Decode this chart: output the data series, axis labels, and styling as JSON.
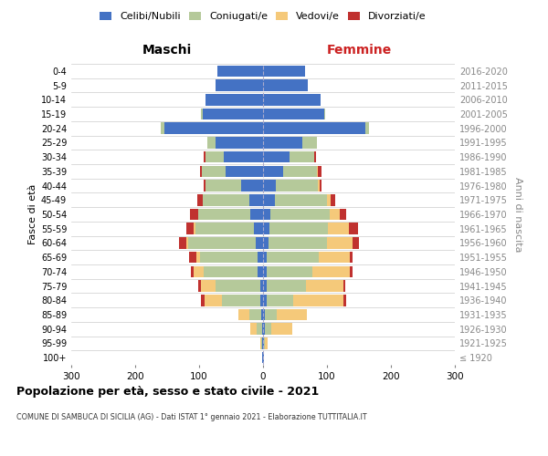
{
  "age_groups": [
    "100+",
    "95-99",
    "90-94",
    "85-89",
    "80-84",
    "75-79",
    "70-74",
    "65-69",
    "60-64",
    "55-59",
    "50-54",
    "45-49",
    "40-44",
    "35-39",
    "30-34",
    "25-29",
    "20-24",
    "15-19",
    "10-14",
    "5-9",
    "0-4"
  ],
  "birth_years": [
    "≤ 1920",
    "1921-1925",
    "1926-1930",
    "1931-1935",
    "1936-1940",
    "1941-1945",
    "1946-1950",
    "1951-1955",
    "1956-1960",
    "1961-1965",
    "1966-1970",
    "1971-1975",
    "1976-1980",
    "1981-1985",
    "1986-1990",
    "1991-1995",
    "1996-2000",
    "2001-2005",
    "2006-2010",
    "2011-2015",
    "2016-2020"
  ],
  "maschi_celibi": [
    1,
    1,
    2,
    3,
    4,
    5,
    8,
    8,
    12,
    14,
    20,
    22,
    35,
    58,
    62,
    75,
    155,
    95,
    90,
    75,
    72
  ],
  "maschi_coniugati": [
    0,
    2,
    8,
    18,
    60,
    70,
    85,
    90,
    105,
    92,
    82,
    73,
    55,
    38,
    28,
    12,
    5,
    2,
    0,
    0,
    0
  ],
  "maschi_vedovi": [
    0,
    2,
    10,
    18,
    28,
    22,
    15,
    6,
    3,
    2,
    0,
    0,
    0,
    0,
    0,
    0,
    0,
    0,
    0,
    0,
    0
  ],
  "maschi_divorziati": [
    0,
    0,
    0,
    0,
    5,
    5,
    5,
    12,
    12,
    12,
    12,
    8,
    3,
    3,
    3,
    0,
    0,
    0,
    0,
    0,
    0
  ],
  "femmine_nubili": [
    1,
    1,
    3,
    3,
    5,
    5,
    5,
    5,
    8,
    10,
    12,
    18,
    20,
    32,
    42,
    62,
    160,
    95,
    90,
    70,
    65
  ],
  "femmine_coniugate": [
    0,
    2,
    10,
    18,
    42,
    62,
    72,
    82,
    92,
    92,
    92,
    82,
    65,
    52,
    38,
    22,
    5,
    2,
    0,
    0,
    0
  ],
  "femmine_vedove": [
    0,
    4,
    32,
    48,
    78,
    58,
    58,
    48,
    40,
    32,
    16,
    5,
    3,
    2,
    0,
    0,
    0,
    0,
    0,
    0,
    0
  ],
  "femmine_divorziate": [
    0,
    0,
    0,
    0,
    5,
    3,
    5,
    5,
    10,
    15,
    10,
    8,
    3,
    5,
    3,
    0,
    0,
    0,
    0,
    0,
    0
  ],
  "color_celibi": "#4472c4",
  "color_coniugati": "#b5c99a",
  "color_vedovi": "#f5c97a",
  "color_divorziati": "#c0312f",
  "xlim": 300,
  "title": "Popolazione per età, sesso e stato civile - 2021",
  "subtitle": "COMUNE DI SAMBUCA DI SICILIA (AG) - Dati ISTAT 1° gennaio 2021 - Elaborazione TUTTITALIA.IT",
  "ylabel_left": "Fasce di età",
  "ylabel_right": "Anni di nascita",
  "xlabel_left": "Maschi",
  "xlabel_right": "Femmine"
}
